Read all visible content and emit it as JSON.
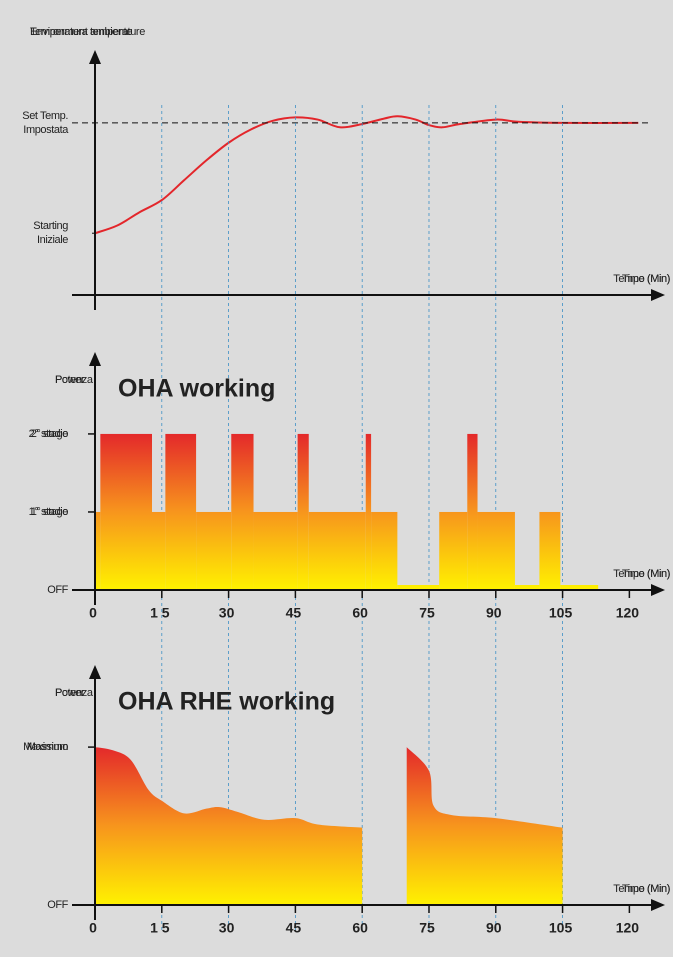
{
  "chart_data": [
    {
      "type": "line",
      "ylabel": [
        "Environment temperature",
        "Temperatura ambiente"
      ],
      "xlabel": [
        "Time (Min)",
        "Tempo (Min)"
      ],
      "xlim": [
        0,
        128
      ],
      "ylim": [
        -56,
        157
      ],
      "yticks": [
        {
          "value": 0,
          "label": [
            "Starting",
            "Iniziale"
          ]
        },
        {
          "value": 100,
          "label": [
            "Set Temp.",
            "Impostata"
          ]
        }
      ],
      "tick_label_lines": true,
      "ref_lines": [
        100
      ],
      "color": "#e3262b",
      "x": [
        0,
        5,
        10,
        15,
        20,
        25,
        30,
        35,
        40,
        45,
        50,
        55,
        60,
        65,
        68,
        72,
        75,
        78,
        82,
        90,
        95,
        105,
        122
      ],
      "values": [
        0,
        7,
        19,
        30,
        48,
        66,
        82,
        94,
        102,
        105,
        103,
        96,
        99,
        104,
        106,
        103,
        98,
        96,
        99,
        103,
        101,
        100,
        100
      ]
    },
    {
      "type": "step",
      "title": "OHA working",
      "ylabel": [
        "Power",
        "Potenza"
      ],
      "xlabel": [
        "Time (Min)",
        "Tempo (Min)"
      ],
      "xlim": [
        0,
        128
      ],
      "ylim": [
        0,
        3.05
      ],
      "xticks": [
        0,
        {
          "value": 15,
          "label": "1 5"
        },
        30,
        45,
        60,
        75,
        90,
        105,
        120
      ],
      "yticks": [
        {
          "value": 0,
          "label": [
            "OFF"
          ]
        },
        {
          "value": 1,
          "label": [
            "1° stage",
            "1° stadio"
          ]
        },
        {
          "value": 2,
          "label": [
            "2° stage",
            "2° stadio"
          ]
        }
      ],
      "vlines": [
        15,
        30,
        45,
        60,
        75,
        90,
        105
      ],
      "colors": [
        "#e3262b",
        "#f7941d",
        "#fff200"
      ],
      "x": [
        0,
        1.2,
        12.8,
        15.8,
        22.7,
        30.6,
        35.6,
        45.5,
        48,
        60.8,
        62,
        67.9,
        77.3,
        83.6,
        85.9,
        94.3,
        99.8,
        104.5,
        113
      ],
      "values": [
        1,
        2,
        1,
        2,
        1,
        2,
        1,
        2,
        1,
        2,
        1,
        0,
        1,
        2,
        1,
        0,
        1,
        0,
        null
      ]
    },
    {
      "type": "area",
      "title": "OHA RHE working",
      "ylabel": [
        "Power",
        "Potenza"
      ],
      "xlabel": [
        "Time (Min)",
        "Tempo (Min)"
      ],
      "xlim": [
        0,
        128
      ],
      "ylim": [
        0,
        152
      ],
      "xticks": [
        0,
        {
          "value": 15,
          "label": "1 5"
        },
        30,
        45,
        60,
        75,
        90,
        105,
        120
      ],
      "yticks": [
        {
          "value": 0,
          "label": [
            "OFF"
          ]
        },
        {
          "value": 100,
          "label": [
            "Maximum",
            "Massimo"
          ]
        }
      ],
      "colors": [
        "#e3262b",
        "#f7941d",
        "#fff200"
      ],
      "x": [
        0,
        4,
        8,
        12,
        15,
        20,
        25,
        28,
        32,
        38,
        45,
        50,
        60,
        65,
        70,
        75,
        76,
        80,
        90,
        105
      ],
      "values": [
        100,
        98,
        92,
        73,
        66,
        58,
        61,
        62,
        59,
        54,
        55,
        51,
        49,
        null,
        100,
        85,
        63,
        57,
        55,
        49
      ]
    }
  ]
}
